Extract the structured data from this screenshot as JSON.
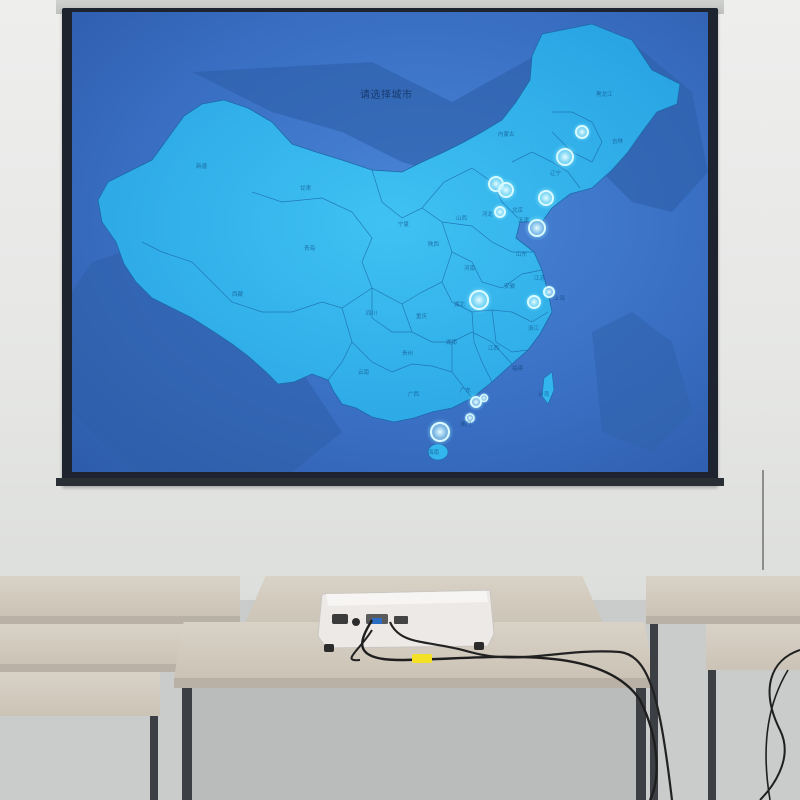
{
  "scene": {
    "description_labels": {
      "map_title": "请选择城市"
    },
    "province_labels": [
      "黑龙江",
      "吉林",
      "辽宁",
      "内蒙古",
      "新疆",
      "甘肃",
      "宁夏",
      "山西",
      "河北",
      "北京",
      "天津",
      "山东",
      "青海",
      "陕西",
      "河南",
      "西藏",
      "四川",
      "湖北",
      "安徽",
      "江苏",
      "上海",
      "重庆",
      "湖南",
      "江西",
      "浙江",
      "贵州",
      "云南",
      "广西",
      "广东",
      "福建",
      "台湾",
      "海南",
      "澳门"
    ],
    "city_markers": 14,
    "colors": {
      "screen_background": "#3a70c4",
      "map_land": "#33b6ee",
      "map_border": "#1d6aa8",
      "marker_ring": "#bdf4ff",
      "projector_body": "#ece9e6",
      "cable_tag": "#f4e024"
    }
  }
}
